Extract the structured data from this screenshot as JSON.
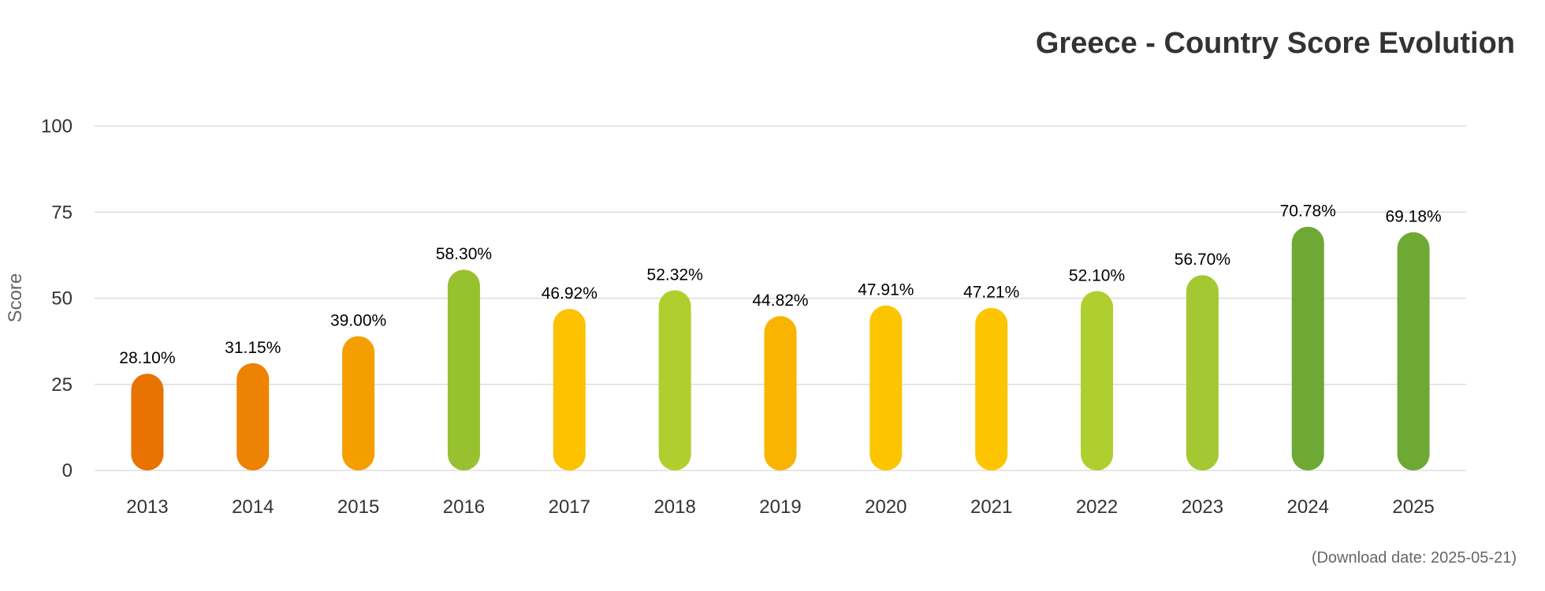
{
  "chart_data": {
    "type": "bar",
    "title": "Greece - Country Score Evolution",
    "xlabel": "",
    "ylabel": "Score",
    "ylim": [
      0,
      100
    ],
    "yticks": [
      0,
      25,
      50,
      75,
      100
    ],
    "grid": true,
    "categories": [
      "2013",
      "2014",
      "2015",
      "2016",
      "2017",
      "2018",
      "2019",
      "2020",
      "2021",
      "2022",
      "2023",
      "2024",
      "2025"
    ],
    "values": [
      28.1,
      31.15,
      39.0,
      58.3,
      46.92,
      52.32,
      44.82,
      47.91,
      47.21,
      52.1,
      56.7,
      70.78,
      69.18
    ],
    "value_labels": [
      "28.10%",
      "31.15%",
      "39.00%",
      "58.30%",
      "46.92%",
      "52.32%",
      "44.82%",
      "47.91%",
      "47.21%",
      "52.10%",
      "56.70%",
      "70.78%",
      "69.18%"
    ],
    "colors": [
      "#e97300",
      "#ee8203",
      "#f59e00",
      "#98c12f",
      "#fcc200",
      "#b0cf2e",
      "#f8b400",
      "#fdc500",
      "#fdc500",
      "#b0cf2e",
      "#a3c832",
      "#6ea835",
      "#6ea835"
    ],
    "gridline_color": "#dddddd"
  },
  "footer": {
    "download_note": "(Download date: 2025-05-21)"
  }
}
